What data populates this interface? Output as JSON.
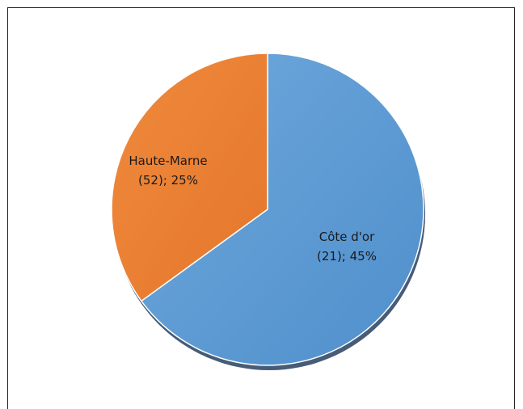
{
  "chart_data": {
    "type": "pie",
    "slices": [
      {
        "label": "Côte d'or",
        "label_line2": "(21); 45%",
        "percent": 65,
        "color": "#5b9bd5",
        "color_dark": "#4a86c0"
      },
      {
        "label": "Haute-Marne",
        "label_line2": "(52); 25%",
        "percent": 35,
        "color": "#ed7d31",
        "color_dark": "#d96b22"
      }
    ],
    "title": "",
    "legend": "none",
    "start_angle": "12 o'clock",
    "direction": "clockwise"
  }
}
